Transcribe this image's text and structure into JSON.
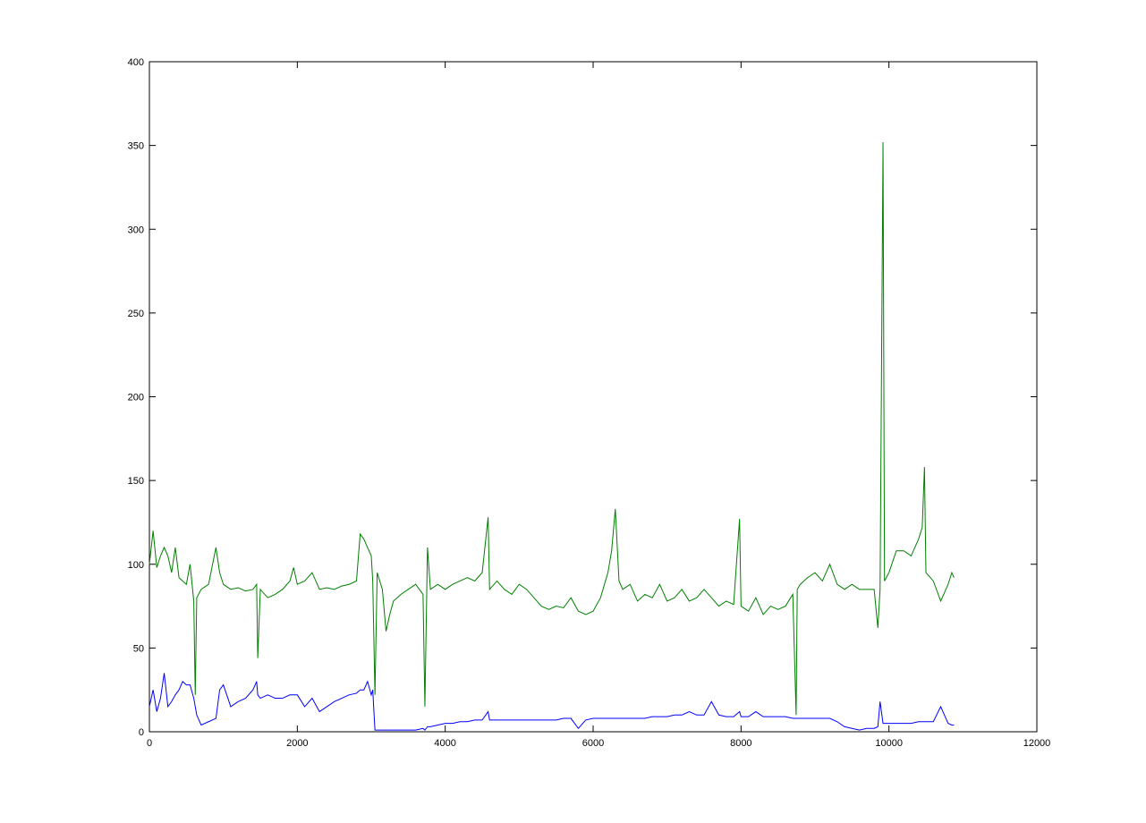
{
  "chart_data": {
    "type": "line",
    "x": [
      0,
      50,
      100,
      150,
      200,
      250,
      300,
      350,
      400,
      450,
      500,
      550,
      600,
      620,
      640,
      700,
      800,
      900,
      950,
      1000,
      1100,
      1200,
      1300,
      1400,
      1450,
      1465,
      1500,
      1600,
      1700,
      1800,
      1900,
      1950,
      2000,
      2100,
      2200,
      2300,
      2400,
      2500,
      2600,
      2700,
      2800,
      2850,
      2900,
      2950,
      3000,
      3020,
      3050,
      3080,
      3150,
      3200,
      3250,
      3300,
      3400,
      3500,
      3600,
      3700,
      3725,
      3760,
      3800,
      3900,
      4000,
      4100,
      4200,
      4300,
      4400,
      4500,
      4580,
      4600,
      4700,
      4800,
      4900,
      5000,
      5100,
      5200,
      5300,
      5400,
      5500,
      5600,
      5700,
      5800,
      5900,
      6000,
      6100,
      6200,
      6250,
      6300,
      6350,
      6400,
      6500,
      6600,
      6700,
      6800,
      6900,
      7000,
      7100,
      7200,
      7300,
      7400,
      7500,
      7600,
      7700,
      7800,
      7900,
      7980,
      8000,
      8100,
      8200,
      8300,
      8400,
      8500,
      8600,
      8700,
      8745,
      8760,
      8800,
      8900,
      9000,
      9100,
      9200,
      9300,
      9400,
      9500,
      9600,
      9700,
      9800,
      9850,
      9880,
      9920,
      9940,
      10000,
      10100,
      10200,
      10300,
      10400,
      10450,
      10480,
      10500,
      10600,
      10700,
      10800,
      10850,
      10880
    ],
    "series": [
      {
        "color": "#007f00",
        "values": [
          100,
          120,
          98,
          105,
          110,
          105,
          95,
          110,
          92,
          90,
          88,
          100,
          78,
          22,
          80,
          85,
          88,
          110,
          95,
          88,
          85,
          86,
          84,
          85,
          88,
          44,
          85,
          80,
          82,
          85,
          90,
          98,
          88,
          90,
          95,
          85,
          86,
          85,
          87,
          88,
          90,
          118,
          115,
          110,
          105,
          90,
          22,
          95,
          85,
          60,
          70,
          78,
          82,
          85,
          88,
          82,
          15,
          110,
          85,
          88,
          85,
          88,
          90,
          92,
          90,
          95,
          128,
          85,
          90,
          85,
          82,
          88,
          85,
          80,
          75,
          73,
          75,
          74,
          80,
          72,
          70,
          72,
          80,
          95,
          108,
          133,
          90,
          85,
          88,
          78,
          82,
          80,
          88,
          78,
          80,
          85,
          78,
          80,
          85,
          80,
          75,
          78,
          76,
          127,
          75,
          72,
          80,
          70,
          75,
          73,
          75,
          82,
          10,
          85,
          88,
          92,
          95,
          90,
          100,
          88,
          85,
          88,
          85,
          85,
          85,
          62,
          85,
          352,
          90,
          95,
          108,
          108,
          105,
          115,
          122,
          158,
          95,
          90,
          78,
          88,
          95,
          92
        ]
      },
      {
        "color": "#0000ff",
        "values": [
          15,
          25,
          12,
          20,
          35,
          15,
          18,
          22,
          25,
          30,
          28,
          28,
          20,
          15,
          10,
          4,
          6,
          8,
          25,
          28,
          15,
          18,
          20,
          25,
          30,
          22,
          20,
          22,
          20,
          20,
          22,
          22,
          22,
          15,
          20,
          12,
          15,
          18,
          20,
          22,
          23,
          25,
          25,
          30,
          22,
          25,
          1,
          1,
          1,
          1,
          1,
          1,
          1,
          1,
          1,
          2,
          1,
          3,
          3,
          4,
          5,
          5,
          6,
          6,
          7,
          7,
          12,
          7,
          7,
          7,
          7,
          7,
          7,
          7,
          7,
          7,
          7,
          8,
          8,
          2,
          7,
          8,
          8,
          8,
          8,
          8,
          8,
          8,
          8,
          8,
          8,
          9,
          9,
          9,
          10,
          10,
          12,
          10,
          10,
          18,
          10,
          9,
          9,
          12,
          9,
          9,
          12,
          9,
          9,
          9,
          9,
          8,
          8,
          8,
          8,
          8,
          8,
          8,
          8,
          6,
          3,
          2,
          1,
          2,
          2,
          3,
          18,
          5,
          5,
          5,
          5,
          5,
          5,
          6,
          6,
          6,
          6,
          6,
          15,
          5,
          4,
          4
        ]
      }
    ],
    "xlim": [
      0,
      12000
    ],
    "xticks": [
      0,
      2000,
      4000,
      6000,
      8000,
      10000,
      12000
    ],
    "ylim": [
      0,
      400
    ],
    "yticks": [
      0,
      50,
      100,
      150,
      200,
      250,
      300,
      350,
      400
    ]
  }
}
